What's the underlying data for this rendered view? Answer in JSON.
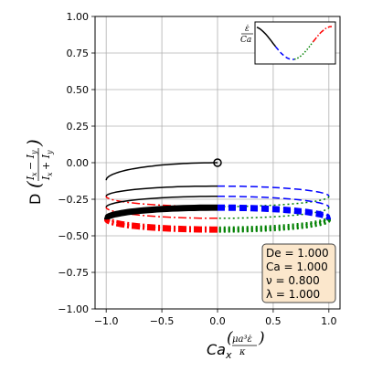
{
  "chart_data": {
    "type": "line",
    "xlim": [
      -1.1,
      1.1
    ],
    "ylim": [
      -1.0,
      1.0
    ],
    "grid": true,
    "xticks": [
      "−1.0",
      "−0.5",
      "0.0",
      "0.5",
      "1.0"
    ],
    "yticks": [
      "−1.00",
      "−0.75",
      "−0.50",
      "−0.25",
      "0.00",
      "0.25",
      "0.50",
      "0.75",
      "1.00"
    ],
    "xlabel_main": "Ca",
    "xlabel_sub": "x",
    "ylabel": "D",
    "start_marker": {
      "x": 0.0,
      "y": 0.0
    },
    "orbits": [
      {
        "center": -0.23,
        "amp": 0.07
      },
      {
        "center": -0.305,
        "amp": 0.075
      },
      {
        "center": -0.37,
        "amp": 0.075
      },
      {
        "center": -0.385,
        "amp": 0.075
      },
      {
        "center": -0.39,
        "amp": 0.075
      }
    ],
    "series_colors": {
      "quarter1": "#000000",
      "quarter2": "#0000ff",
      "quarter3": "#008000",
      "quarter4": "#ff0000"
    },
    "params": [
      {
        "name": "De",
        "value": "1.000"
      },
      {
        "name": "Ca",
        "value": "1.000"
      },
      {
        "name": "ν",
        "value": "0.800"
      },
      {
        "name": "λ",
        "value": "1.000"
      }
    ],
    "inset": {
      "ylabel_top": "ε̇",
      "ylabel_bottom": "Ca"
    }
  }
}
